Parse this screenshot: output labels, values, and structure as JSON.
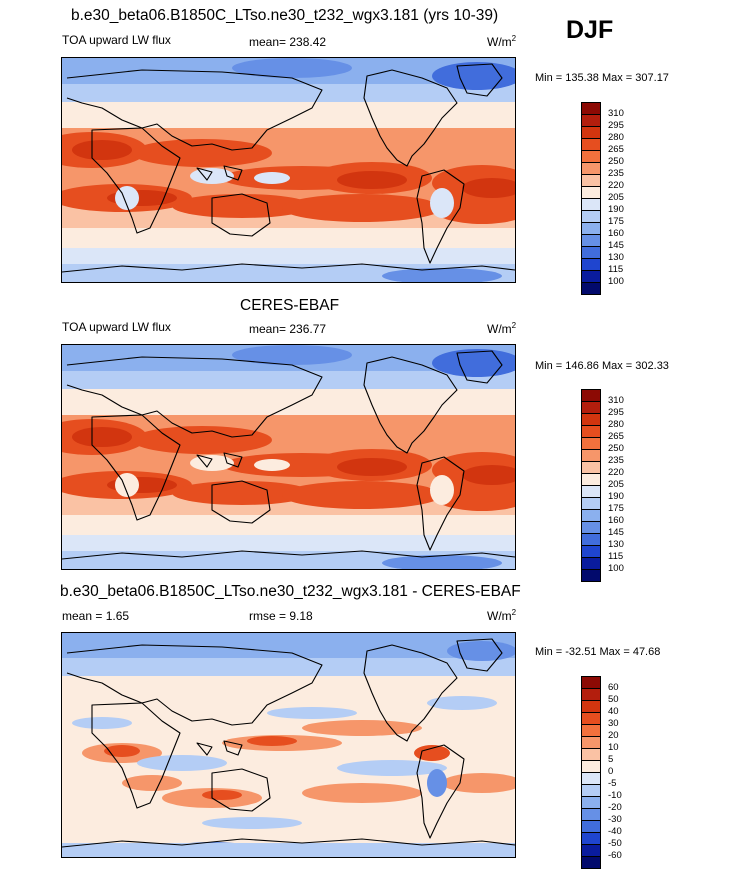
{
  "season": "DJF",
  "panels": [
    {
      "title": "b.e30_beta06.B1850C_LTso.ne30_t232_wgx3.181 (yrs 10-39)",
      "variable": "TOA upward LW flux",
      "mean_label": "mean= 238.42",
      "rmse_label": "",
      "units_base": "W/m",
      "units_exp": "2",
      "minmax": "Min = 135.38 Max = 307.17",
      "levels": [
        "310",
        "295",
        "280",
        "265",
        "250",
        "235",
        "220",
        "205",
        "190",
        "175",
        "160",
        "145",
        "130",
        "115",
        "100"
      ]
    },
    {
      "title": "CERES-EBAF",
      "variable": "TOA upward LW flux",
      "mean_label": "mean= 236.77",
      "rmse_label": "",
      "units_base": "W/m",
      "units_exp": "2",
      "minmax": "Min = 146.86 Max = 302.33",
      "levels": [
        "310",
        "295",
        "280",
        "265",
        "250",
        "235",
        "220",
        "205",
        "190",
        "175",
        "160",
        "145",
        "130",
        "115",
        "100"
      ]
    },
    {
      "title": "b.e30_beta06.B1850C_LTso.ne30_t232_wgx3.181 - CERES-EBAF",
      "variable": "",
      "mean_label": "mean =   1.65",
      "rmse_label": "rmse =   9.18",
      "units_base": "W/m",
      "units_exp": "2",
      "minmax": "Min = -32.51 Max =  47.68",
      "levels": [
        "60",
        "50",
        "40",
        "30",
        "20",
        "10",
        "5",
        "0",
        "-5",
        "-10",
        "-20",
        "-30",
        "-40",
        "-50",
        "-60"
      ]
    }
  ],
  "colors": {
    "palette": [
      "#8c0a04",
      "#b31e0d",
      "#d2350f",
      "#e64e1f",
      "#f2713d",
      "#f6966a",
      "#fac2a4",
      "#fcecdf",
      "#dbe6f8",
      "#b4cdf5",
      "#8bb0ee",
      "#6690e6",
      "#416ddc",
      "#1f45cf",
      "#0a1c9e",
      "#020a6c"
    ],
    "coast": "#000000"
  }
}
